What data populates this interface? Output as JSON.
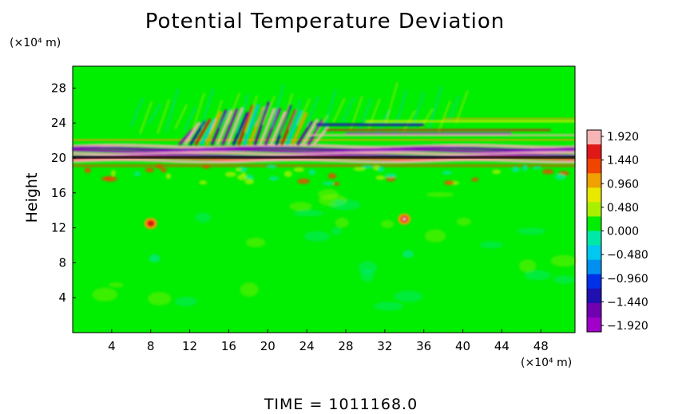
{
  "chart_data": {
    "type": "heatmap",
    "title": "Potential Temperature Deviation",
    "ylabel": "Height",
    "y_unit": "(×10⁴ m)",
    "x_unit": "(×10⁴ m)",
    "footer": "TIME  =  1011168.0",
    "xlim": [
      0,
      51.5
    ],
    "ylim": [
      0,
      30.5
    ],
    "x_ticks": [
      "4",
      "8",
      "12",
      "16",
      "20",
      "24",
      "28",
      "32",
      "36",
      "40",
      "44",
      "48"
    ],
    "y_ticks": [
      "4",
      "8",
      "12",
      "16",
      "20",
      "24",
      "28"
    ],
    "colorbar": {
      "labels": [
        "1.920",
        "1.440",
        "0.960",
        "0.480",
        "0.000",
        "−0.480",
        "−0.960",
        "−1.440",
        "−1.920"
      ],
      "values": [
        1.92,
        1.44,
        0.96,
        0.48,
        0.0,
        -0.48,
        -0.96,
        -1.44,
        -1.92
      ],
      "colors": [
        "#f7b4b4",
        "#e01818",
        "#f04400",
        "#f0a000",
        "#e8e800",
        "#a8f000",
        "#00ee00",
        "#00e8a8",
        "#00c8f0",
        "#0090f0",
        "#0030e8",
        "#2010b0",
        "#7000b0",
        "#a000c8"
      ]
    },
    "background_value": 0.0,
    "features": [
      {
        "name": "strong alternating layer",
        "y_range": [
          19.5,
          21.5
        ],
        "x_range": [
          0,
          51.5
        ],
        "amplitude": 1.92
      },
      {
        "name": "gravity-wave band",
        "y_range": [
          21.5,
          26
        ],
        "x_range": [
          11,
          25
        ],
        "amplitude": 1.44
      },
      {
        "name": "upper layer ripples",
        "y_range": [
          22,
          24
        ],
        "x_range": [
          24,
          51.5
        ],
        "amplitude": 0.96
      },
      {
        "name": "warm anomaly",
        "x": 8,
        "y": 12.5,
        "value": 1.44
      },
      {
        "name": "warm anomaly",
        "x": 34,
        "y": 13,
        "value": 1.92
      }
    ]
  }
}
